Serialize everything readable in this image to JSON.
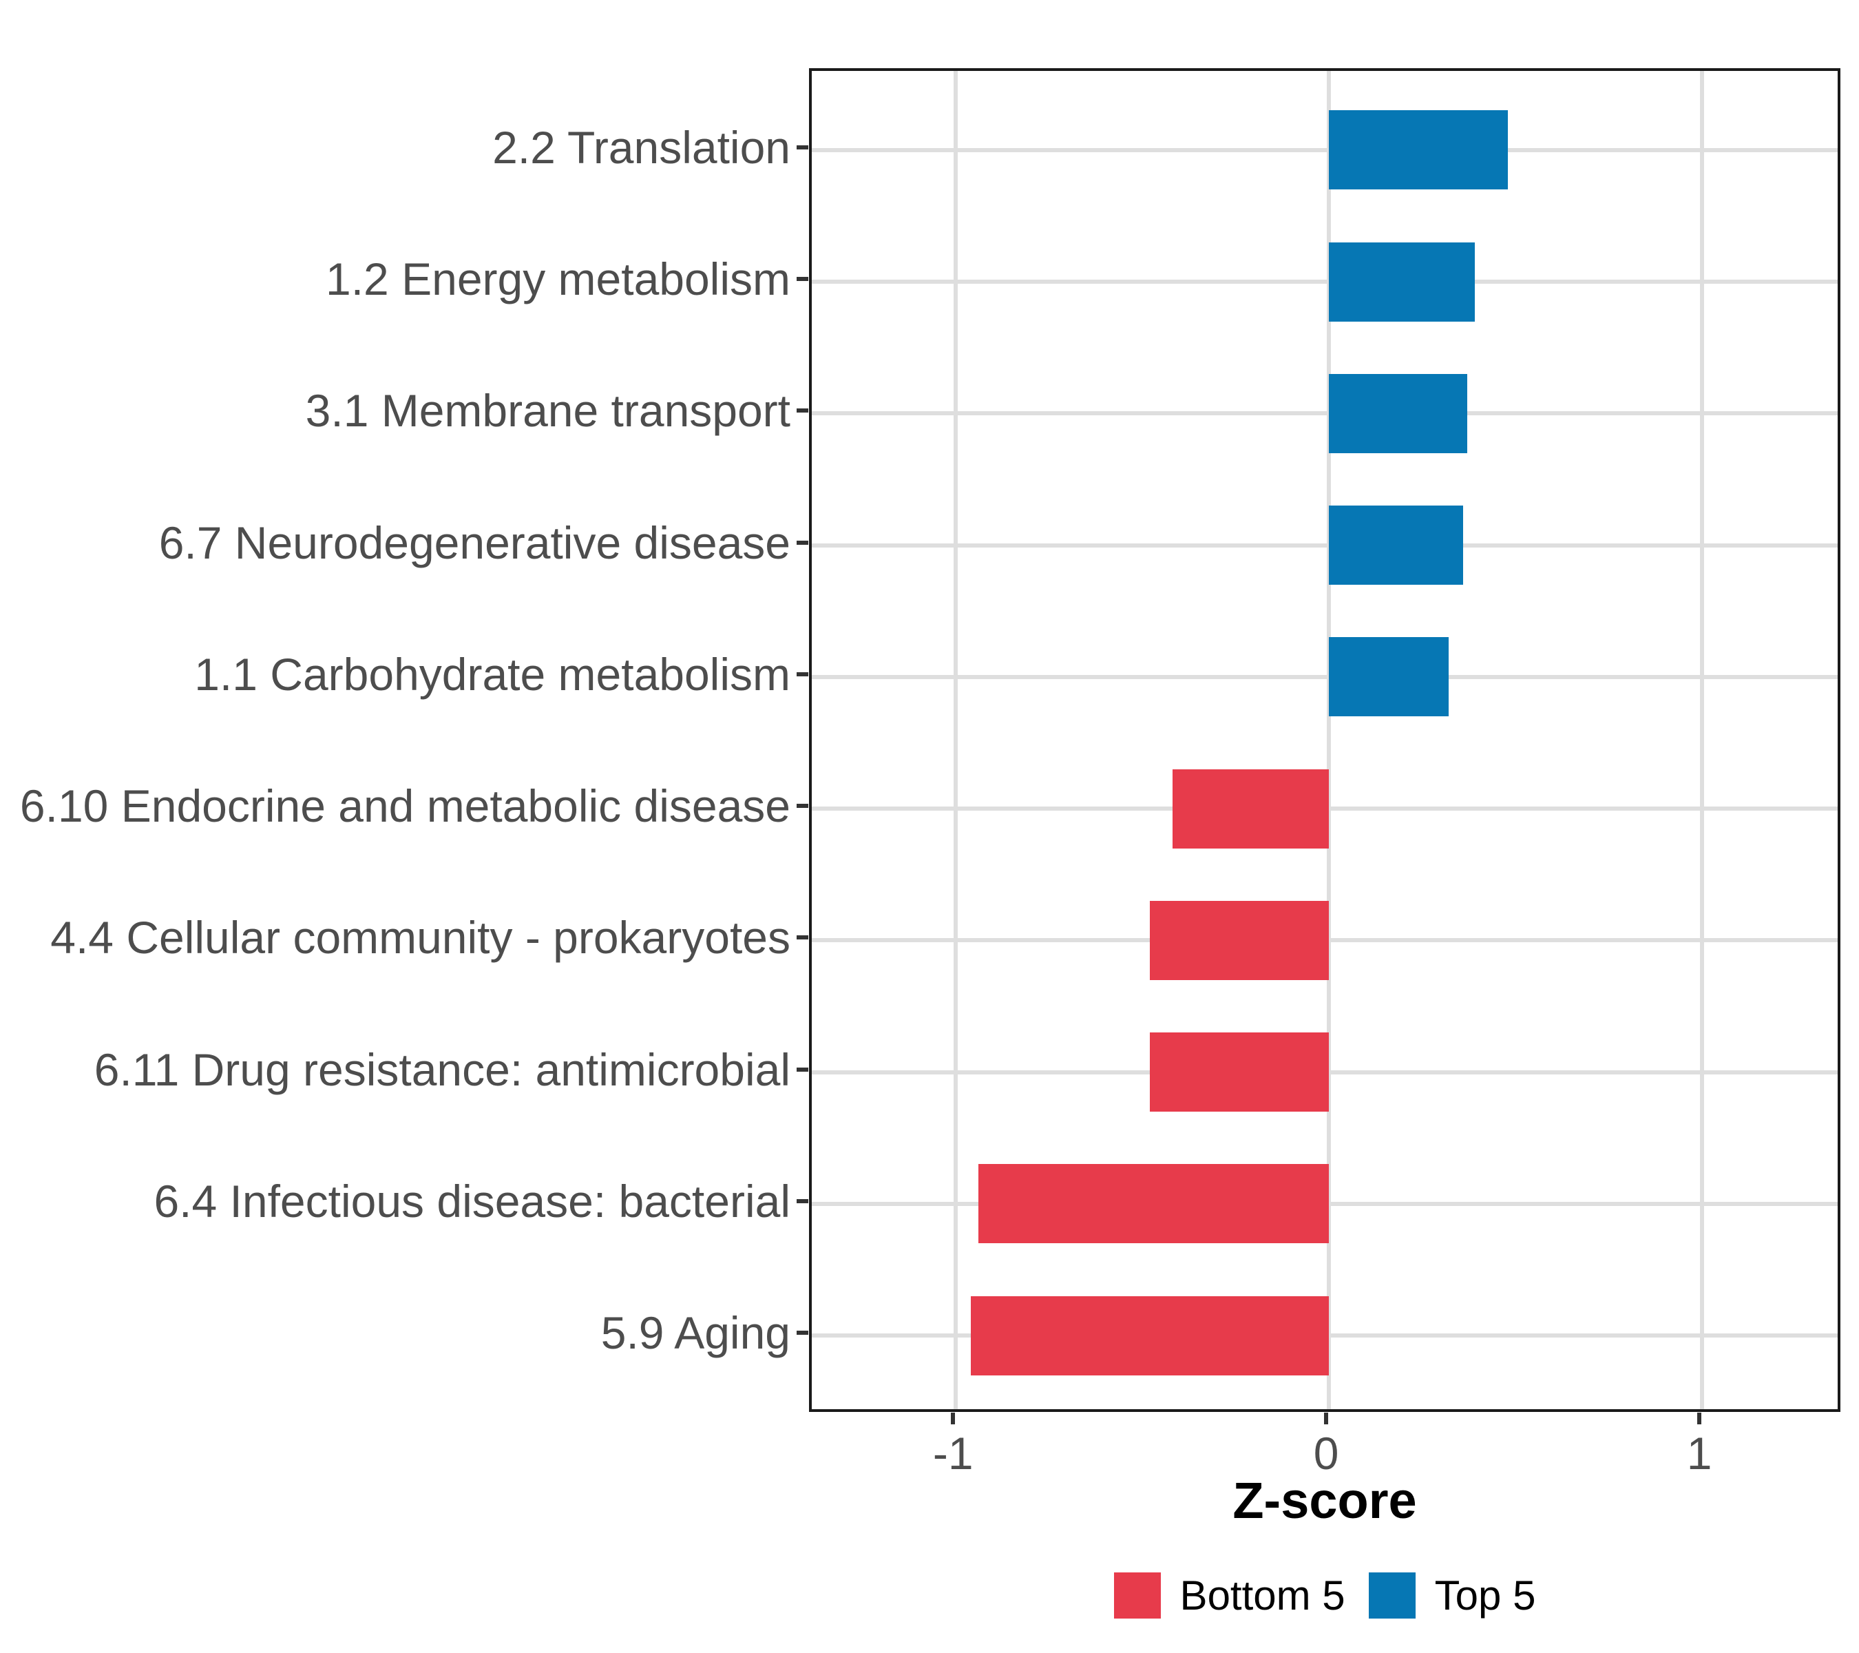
{
  "chart_data": {
    "type": "bar",
    "orientation": "horizontal",
    "title": "",
    "xlabel": "Z-score",
    "ylabel": "",
    "categories": [
      "2.2 Translation",
      "1.2 Energy metabolism",
      "3.1 Membrane transport",
      "6.7 Neurodegenerative disease",
      "1.1 Carbohydrate metabolism",
      "6.10 Endocrine and metabolic disease",
      "4.4 Cellular community - prokaryotes",
      "6.11 Drug resistance: antimicrobial",
      "6.4 Infectious disease: bacterial",
      "5.9 Aging"
    ],
    "values": [
      0.48,
      0.39,
      0.37,
      0.36,
      0.32,
      -0.42,
      -0.48,
      -0.48,
      -0.94,
      -0.96
    ],
    "groups": [
      "Top 5",
      "Top 5",
      "Top 5",
      "Top 5",
      "Top 5",
      "Bottom 5",
      "Bottom 5",
      "Bottom 5",
      "Bottom 5",
      "Bottom 5"
    ],
    "group_colors": {
      "Top 5": "#0677b4",
      "Bottom 5": "#e73b4b"
    },
    "x_ticks": [
      -1,
      0,
      1
    ],
    "x_tick_labels": [
      "-1",
      "0",
      "1"
    ],
    "xlim": [
      -1.386,
      1.378
    ],
    "grid": "major-only",
    "legend": {
      "position": "bottom",
      "entries": [
        {
          "label": "Bottom 5",
          "color": "#e73b4b"
        },
        {
          "label": "Top 5",
          "color": "#0677b4"
        }
      ]
    }
  },
  "style_colors": {
    "gridline": "#dedede",
    "panel_border": "#1a1a1a",
    "axis_text": "#4d4d4d",
    "tick": "#333333"
  }
}
